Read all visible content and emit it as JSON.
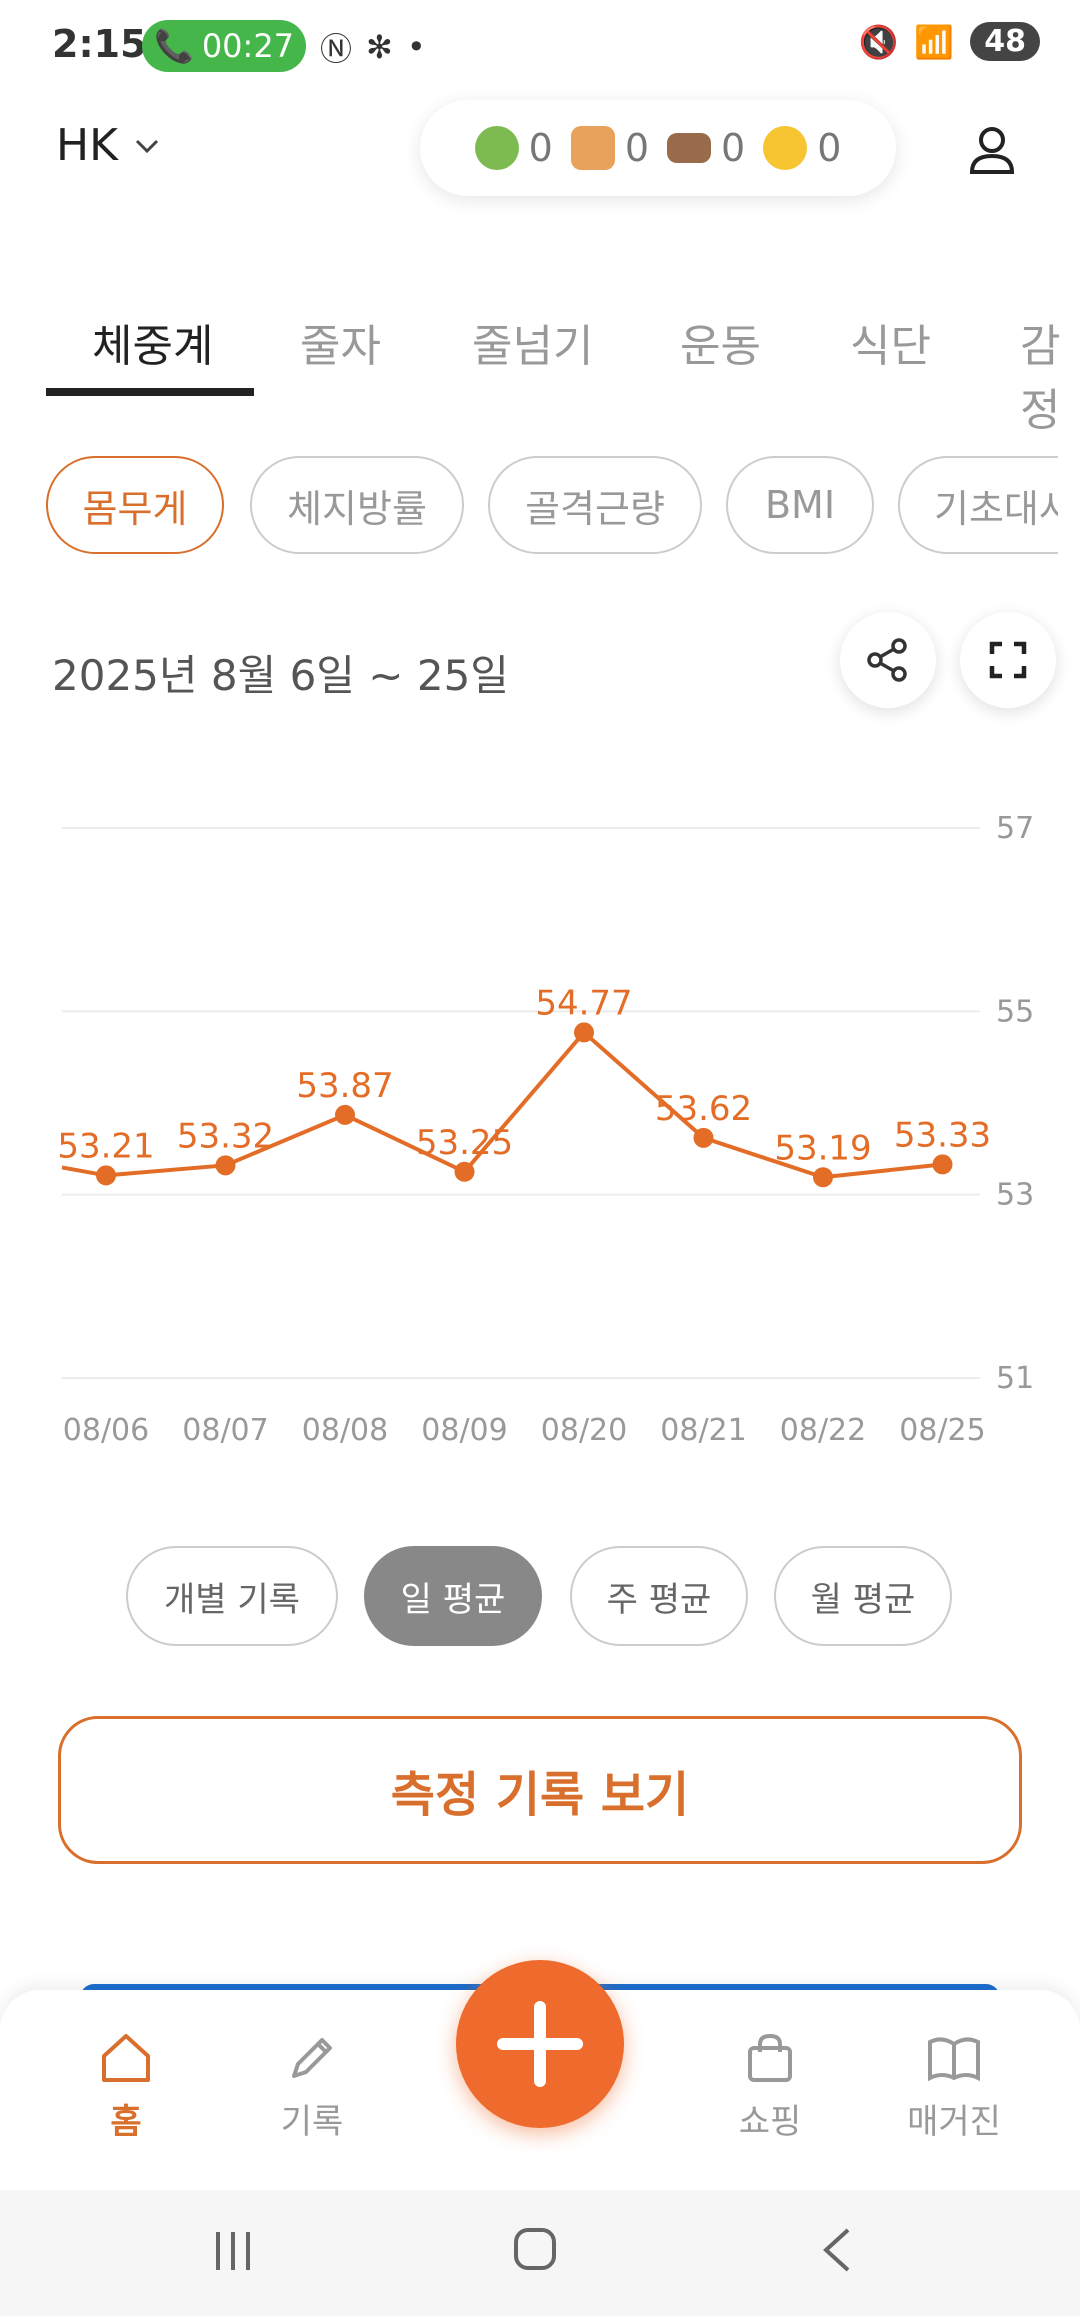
{
  "status_bar": {
    "time": "2:15",
    "call_time": "00:27",
    "battery": "48"
  },
  "header": {
    "profile_name": "HK",
    "counters": [
      {
        "icon": "salad-icon",
        "value": "0"
      },
      {
        "icon": "weightlifting-icon",
        "value": "0"
      },
      {
        "icon": "sleep-bed-icon",
        "value": "0"
      },
      {
        "icon": "sun-icon",
        "value": "0"
      }
    ]
  },
  "tabs": [
    "체중계",
    "줄자",
    "줄넘기",
    "운동",
    "식단",
    "감정"
  ],
  "chips": [
    "몸무게",
    "체지방률",
    "골격근량",
    "BMI",
    "기초대사"
  ],
  "date_range": "2025년 8월 6일 ~ 25일",
  "chart_data": {
    "type": "line",
    "categories": [
      "08/06",
      "08/07",
      "08/08",
      "08/09",
      "08/20",
      "08/21",
      "08/22",
      "08/25"
    ],
    "values": [
      53.21,
      53.32,
      53.87,
      53.25,
      54.77,
      53.62,
      53.19,
      53.33
    ],
    "y_ticks": [
      "57",
      "55",
      "53",
      "51"
    ],
    "ylim": [
      51,
      57
    ],
    "grid": true,
    "color": "#e36d27"
  },
  "aggregation": [
    "개별 기록",
    "일 평균",
    "주 평균",
    "월 평균"
  ],
  "history_button": "측정 기록 보기",
  "bottom_nav": [
    "홈",
    "기록",
    "쇼핑",
    "매거진"
  ]
}
